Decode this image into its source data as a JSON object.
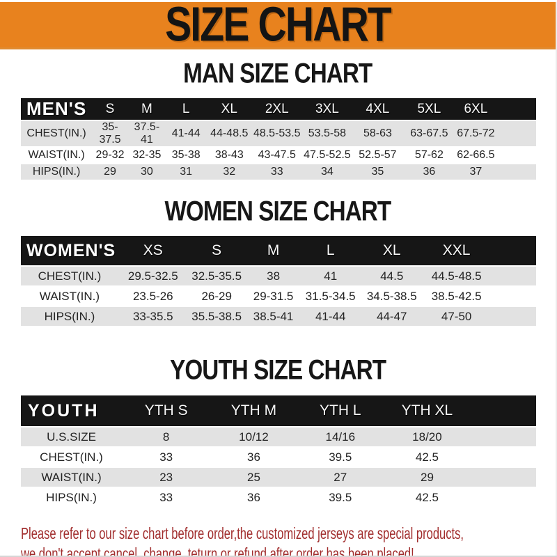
{
  "banner": {
    "title": "SIZE CHART",
    "bg_color": "#E8821E",
    "text_color": "#141414"
  },
  "sections": [
    {
      "title": "MAN SIZE CHART",
      "header_label": "MEN'S",
      "columns": [
        "S",
        "M",
        "L",
        "XL",
        "2XL",
        "3XL",
        "4XL",
        "5XL",
        "6XL"
      ],
      "rows": [
        {
          "label": "CHEST(IN.)",
          "values": [
            "35-37.5",
            "37.5-41",
            "41-44",
            "44-48.5",
            "48.5-53.5",
            "53.5-58",
            "58-63",
            "63-67.5",
            "67.5-72"
          ]
        },
        {
          "label": "WAIST(IN.)",
          "values": [
            "29-32",
            "32-35",
            "35-38",
            "38-43",
            "43-47.5",
            "47.5-52.5",
            "52.5-57",
            "57-62",
            "62-66.5"
          ]
        },
        {
          "label": "HIPS(IN.)",
          "values": [
            "29",
            "30",
            "31",
            "32",
            "33",
            "34",
            "35",
            "36",
            "37"
          ]
        }
      ]
    },
    {
      "title": "WOMEN SIZE CHART",
      "header_label": "WOMEN'S",
      "columns": [
        "XS",
        "S",
        "M",
        "L",
        "XL",
        "XXL"
      ],
      "rows": [
        {
          "label": "CHEST(IN.)",
          "values": [
            "29.5-32.5",
            "32.5-35.5",
            "38",
            "41",
            "44.5",
            "44.5-48.5"
          ]
        },
        {
          "label": "WAIST(IN.)",
          "values": [
            "23.5-26",
            "26-29",
            "29-31.5",
            "31.5-34.5",
            "34.5-38.5",
            "38.5-42.5"
          ]
        },
        {
          "label": "HIPS(IN.)",
          "values": [
            "33-35.5",
            "35.5-38.5",
            "38.5-41",
            "41-44",
            "44-47",
            "47-50"
          ]
        }
      ]
    },
    {
      "title": "YOUTH SIZE CHART",
      "header_label": "YOUTH",
      "columns": [
        "YTH S",
        "YTH M",
        "YTH L",
        "YTH XL"
      ],
      "rows": [
        {
          "label": "U.S.SIZE",
          "values": [
            "8",
            "10/12",
            "14/16",
            "18/20"
          ]
        },
        {
          "label": "CHEST(IN.)",
          "values": [
            "33",
            "36",
            "39.5",
            "42.5"
          ]
        },
        {
          "label": "WAIST(IN.)",
          "values": [
            "23",
            "25",
            "27",
            "29"
          ]
        },
        {
          "label": "HIPS(IN.)",
          "values": [
            "33",
            "36",
            "39.5",
            "42.5"
          ]
        }
      ]
    }
  ],
  "footer": {
    "line1": "Please refer to our size chart before order,the customized jerseys are special products,",
    "line2": "we don't accept cancel, change, teturn or refund after order has been placed!",
    "text_color": "#A12D2D"
  },
  "colors": {
    "accent_orange": "#E8821E",
    "header_bar_black": "#161616",
    "row_gray": "#E2E2E2",
    "note_red": "#A12D2D"
  }
}
